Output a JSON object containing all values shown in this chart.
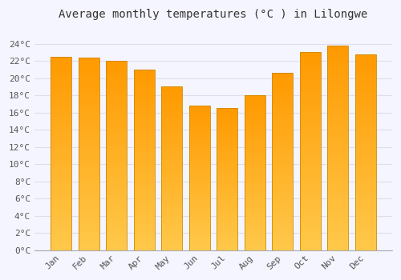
{
  "title": "Average monthly temperatures (°C ) in Lilongwe",
  "months": [
    "Jan",
    "Feb",
    "Mar",
    "Apr",
    "May",
    "Jun",
    "Jul",
    "Aug",
    "Sep",
    "Oct",
    "Nov",
    "Dec"
  ],
  "values": [
    22.5,
    22.4,
    22.0,
    21.0,
    19.0,
    16.8,
    16.5,
    18.0,
    20.6,
    23.0,
    23.8,
    22.8
  ],
  "bar_color_top": "#FFB300",
  "bar_color_bottom": "#FFC84A",
  "bar_edge_color": "#CC8800",
  "background_color": "#F5F5FF",
  "plot_bg_color": "#F5F5FF",
  "grid_color": "#DDDDEE",
  "ylim": [
    0,
    26
  ],
  "yticks": [
    0,
    2,
    4,
    6,
    8,
    10,
    12,
    14,
    16,
    18,
    20,
    22,
    24
  ],
  "title_fontsize": 10,
  "tick_fontsize": 8,
  "tick_color": "#555555",
  "title_color": "#333333",
  "bar_width": 0.75
}
